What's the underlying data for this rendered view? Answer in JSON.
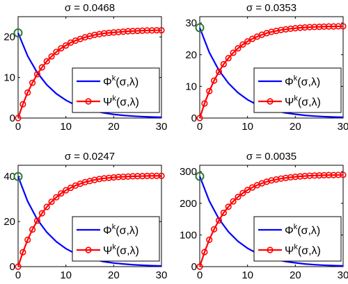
{
  "chart_data": [
    {
      "type": "line",
      "title": "σ = 0.0468",
      "xlim": [
        0,
        30
      ],
      "ylim": [
        0,
        25
      ],
      "xticks": [
        0,
        10,
        20,
        30
      ],
      "yticks": [
        0,
        10,
        20
      ],
      "grid": false,
      "legend_position": "bottom-right",
      "series": [
        {
          "name": "Φ",
          "sup": "k",
          "suffix": "(σ,λ)",
          "color": "#0000ff",
          "marker": "none",
          "x": [
            0,
            2,
            4,
            6,
            8,
            10,
            12,
            14,
            16,
            18,
            20,
            22,
            24,
            26,
            28,
            30
          ],
          "y": [
            21.0,
            15.3,
            11.2,
            8.2,
            6.0,
            4.4,
            3.2,
            2.3,
            1.7,
            1.25,
            0.9,
            0.66,
            0.48,
            0.35,
            0.26,
            0.19
          ]
        },
        {
          "name": "Ψ",
          "sup": "k",
          "suffix": "(σ,λ)",
          "color": "#ff0000",
          "marker": "circle",
          "x": [
            0,
            1,
            2,
            3,
            4,
            5,
            6,
            7,
            8,
            9,
            10,
            11,
            12,
            13,
            14,
            15,
            16,
            17,
            18,
            19,
            20,
            21,
            22,
            23,
            24,
            25,
            26,
            27,
            28,
            29,
            30
          ],
          "y": [
            0,
            3.4,
            6.3,
            8.7,
            10.8,
            12.5,
            14.0,
            15.2,
            16.3,
            17.2,
            17.9,
            18.6,
            19.1,
            19.5,
            19.9,
            20.2,
            20.5,
            20.7,
            20.9,
            21.0,
            21.1,
            21.2,
            21.3,
            21.4,
            21.45,
            21.5,
            21.55,
            21.6,
            21.6,
            21.65,
            21.65
          ]
        }
      ],
      "markers": [
        {
          "x": 0,
          "y": 21.0,
          "color": "#2e7d32"
        }
      ]
    },
    {
      "type": "line",
      "title": "σ = 0.0353",
      "xlim": [
        0,
        30
      ],
      "ylim": [
        0,
        32
      ],
      "xticks": [
        0,
        10,
        20,
        30
      ],
      "yticks": [
        0,
        10,
        20,
        30
      ],
      "grid": false,
      "legend_position": "bottom-right",
      "series": [
        {
          "name": "Φ",
          "sup": "k",
          "suffix": "(σ,λ)",
          "color": "#0000ff",
          "marker": "none",
          "x": [
            0,
            2,
            4,
            6,
            8,
            10,
            12,
            14,
            16,
            18,
            20,
            22,
            24,
            26,
            28,
            30
          ],
          "y": [
            28.5,
            20.7,
            15.1,
            11.0,
            8.0,
            5.8,
            4.2,
            3.1,
            2.2,
            1.6,
            1.2,
            0.85,
            0.62,
            0.45,
            0.33,
            0.24
          ]
        },
        {
          "name": "Ψ",
          "sup": "k",
          "suffix": "(σ,λ)",
          "color": "#ff0000",
          "marker": "circle",
          "x": [
            0,
            1,
            2,
            3,
            4,
            5,
            6,
            7,
            8,
            9,
            10,
            11,
            12,
            13,
            14,
            15,
            16,
            17,
            18,
            19,
            20,
            21,
            22,
            23,
            24,
            25,
            26,
            27,
            28,
            29,
            30
          ],
          "y": [
            0,
            4.6,
            8.5,
            11.8,
            14.6,
            17.0,
            18.9,
            20.6,
            22.0,
            23.2,
            24.2,
            25.0,
            25.7,
            26.3,
            26.8,
            27.2,
            27.5,
            27.8,
            28.0,
            28.2,
            28.35,
            28.5,
            28.6,
            28.7,
            28.75,
            28.8,
            28.85,
            28.9,
            28.9,
            28.95,
            28.95
          ]
        }
      ],
      "markers": [
        {
          "x": 0,
          "y": 28.5,
          "color": "#2e7d32"
        }
      ]
    },
    {
      "type": "line",
      "title": "σ = 0.0247",
      "xlim": [
        0,
        30
      ],
      "ylim": [
        0,
        45
      ],
      "xticks": [
        0,
        10,
        20,
        30
      ],
      "yticks": [
        0,
        20,
        40
      ],
      "grid": false,
      "legend_position": "bottom-right",
      "series": [
        {
          "name": "Φ",
          "sup": "k",
          "suffix": "(σ,λ)",
          "color": "#0000ff",
          "marker": "none",
          "x": [
            0,
            2,
            4,
            6,
            8,
            10,
            12,
            14,
            16,
            18,
            20,
            22,
            24,
            26,
            28,
            30
          ],
          "y": [
            40.0,
            29.0,
            21.0,
            15.3,
            11.1,
            8.0,
            5.8,
            4.2,
            3.1,
            2.2,
            1.6,
            1.2,
            0.85,
            0.62,
            0.45,
            0.33
          ]
        },
        {
          "name": "Ψ",
          "sup": "k",
          "suffix": "(σ,λ)",
          "color": "#ff0000",
          "marker": "circle",
          "x": [
            0,
            1,
            2,
            3,
            4,
            5,
            6,
            7,
            8,
            9,
            10,
            11,
            12,
            13,
            14,
            15,
            16,
            17,
            18,
            19,
            20,
            21,
            22,
            23,
            24,
            25,
            26,
            27,
            28,
            29,
            30
          ],
          "y": [
            0,
            6.4,
            11.9,
            16.5,
            20.4,
            23.7,
            26.5,
            28.8,
            30.8,
            32.5,
            33.9,
            35.0,
            36.0,
            36.8,
            37.5,
            38.0,
            38.5,
            38.9,
            39.2,
            39.4,
            39.6,
            39.8,
            39.9,
            40.0,
            40.1,
            40.15,
            40.2,
            40.25,
            40.3,
            40.3,
            40.3
          ]
        }
      ],
      "markers": [
        {
          "x": 0,
          "y": 40.0,
          "color": "#2e7d32"
        }
      ]
    },
    {
      "type": "line",
      "title": "σ = 0.0035",
      "xlim": [
        0,
        30
      ],
      "ylim": [
        0,
        320
      ],
      "xticks": [
        0,
        10,
        20,
        30
      ],
      "yticks": [
        0,
        100,
        200,
        300
      ],
      "grid": false,
      "legend_position": "bottom-right",
      "series": [
        {
          "name": "Φ",
          "sup": "k",
          "suffix": "(σ,λ)",
          "color": "#0000ff",
          "marker": "none",
          "x": [
            0,
            2,
            4,
            6,
            8,
            10,
            12,
            14,
            16,
            18,
            20,
            22,
            24,
            26,
            28,
            30
          ],
          "y": [
            285,
            207,
            151,
            110,
            80,
            58,
            42,
            31,
            22,
            16,
            12,
            8.5,
            6.2,
            4.5,
            3.3,
            2.4
          ]
        },
        {
          "name": "Ψ",
          "sup": "k",
          "suffix": "(σ,λ)",
          "color": "#ff0000",
          "marker": "circle",
          "x": [
            0,
            1,
            2,
            3,
            4,
            5,
            6,
            7,
            8,
            9,
            10,
            11,
            12,
            13,
            14,
            15,
            16,
            17,
            18,
            19,
            20,
            21,
            22,
            23,
            24,
            25,
            26,
            27,
            28,
            29,
            30
          ],
          "y": [
            0,
            46,
            85,
            118,
            146,
            170,
            189,
            206,
            220,
            232,
            242,
            250,
            257,
            263,
            268,
            272,
            275,
            278,
            280,
            282,
            283.5,
            285,
            286,
            287,
            287.5,
            288,
            288.5,
            289,
            289,
            289.5,
            289.5
          ]
        }
      ],
      "markers": [
        {
          "x": 0,
          "y": 285,
          "color": "#2e7d32"
        }
      ]
    }
  ]
}
